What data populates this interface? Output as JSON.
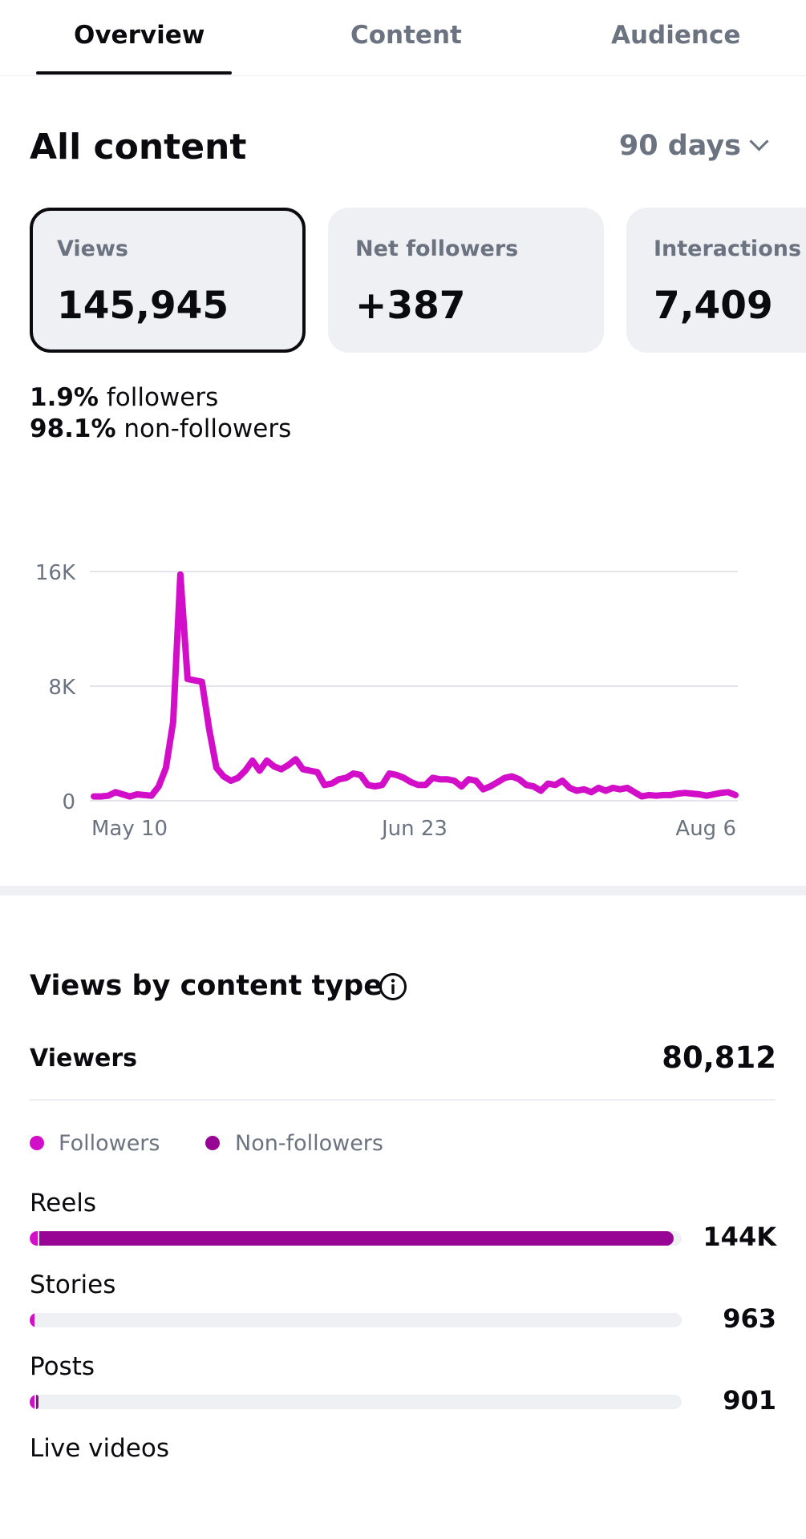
{
  "tabs": [
    {
      "label": "Overview",
      "active": true
    },
    {
      "label": "Content",
      "active": false
    },
    {
      "label": "Audience",
      "active": false
    }
  ],
  "header": {
    "title": "All content",
    "range": "90 days"
  },
  "metrics": [
    {
      "label": "Views",
      "value": "145,945",
      "selected": true
    },
    {
      "label": "Net followers",
      "value": "+387",
      "selected": false
    },
    {
      "label": "Interactions",
      "value": "7,409",
      "selected": false
    }
  ],
  "audience_split": {
    "followers_pct": "1.9%",
    "followers_label": " followers",
    "nonfollowers_pct": "98.1%",
    "nonfollowers_label": " non-followers"
  },
  "chart_data": {
    "type": "line",
    "title": "",
    "xlabel": "",
    "ylabel": "",
    "ylim": [
      0,
      16000
    ],
    "yticks": [
      {
        "value": 0,
        "label": "0"
      },
      {
        "value": 8000,
        "label": "8K"
      },
      {
        "value": 16000,
        "label": "16K"
      }
    ],
    "xticks": [
      "May 10",
      "Jun 23",
      "Aug 6"
    ],
    "color": "#d20ec9",
    "values": [
      300,
      300,
      350,
      600,
      450,
      300,
      450,
      400,
      350,
      1000,
      2300,
      5500,
      15800,
      8500,
      8400,
      8300,
      5000,
      2300,
      1700,
      1400,
      1600,
      2100,
      2800,
      2100,
      2800,
      2400,
      2200,
      2500,
      2900,
      2200,
      2100,
      2000,
      1100,
      1200,
      1500,
      1600,
      1900,
      1800,
      1100,
      1000,
      1100,
      1900,
      1800,
      1600,
      1300,
      1100,
      1100,
      1600,
      1500,
      1500,
      1400,
      1000,
      1500,
      1400,
      800,
      1000,
      1300,
      1600,
      1700,
      1500,
      1100,
      1000,
      700,
      1200,
      1100,
      1400,
      900,
      700,
      800,
      600,
      900,
      700,
      900,
      800,
      900,
      600,
      300,
      400,
      350,
      400,
      400,
      500,
      550,
      500,
      450,
      350,
      450,
      550,
      600,
      400
    ]
  },
  "content_type": {
    "title": "Views by content type",
    "viewers_label": "Viewers",
    "viewers_value": "80,812",
    "legend": [
      {
        "label": "Followers",
        "color": "#d20ec9"
      },
      {
        "label": "Non-followers",
        "color": "#980493"
      }
    ],
    "rows": [
      {
        "label": "Reels",
        "value": "144K",
        "followers_fraction": 0.012,
        "nonfollowers_fraction": 0.988
      },
      {
        "label": "Stories",
        "value": "963",
        "followers_fraction": 0.0067,
        "nonfollowers_fraction": 0.0
      },
      {
        "label": "Posts",
        "value": "901",
        "followers_fraction": 0.004,
        "nonfollowers_fraction": 0.006
      },
      {
        "label": "Live videos",
        "value": "",
        "followers_fraction": 0,
        "nonfollowers_fraction": 0
      }
    ]
  }
}
